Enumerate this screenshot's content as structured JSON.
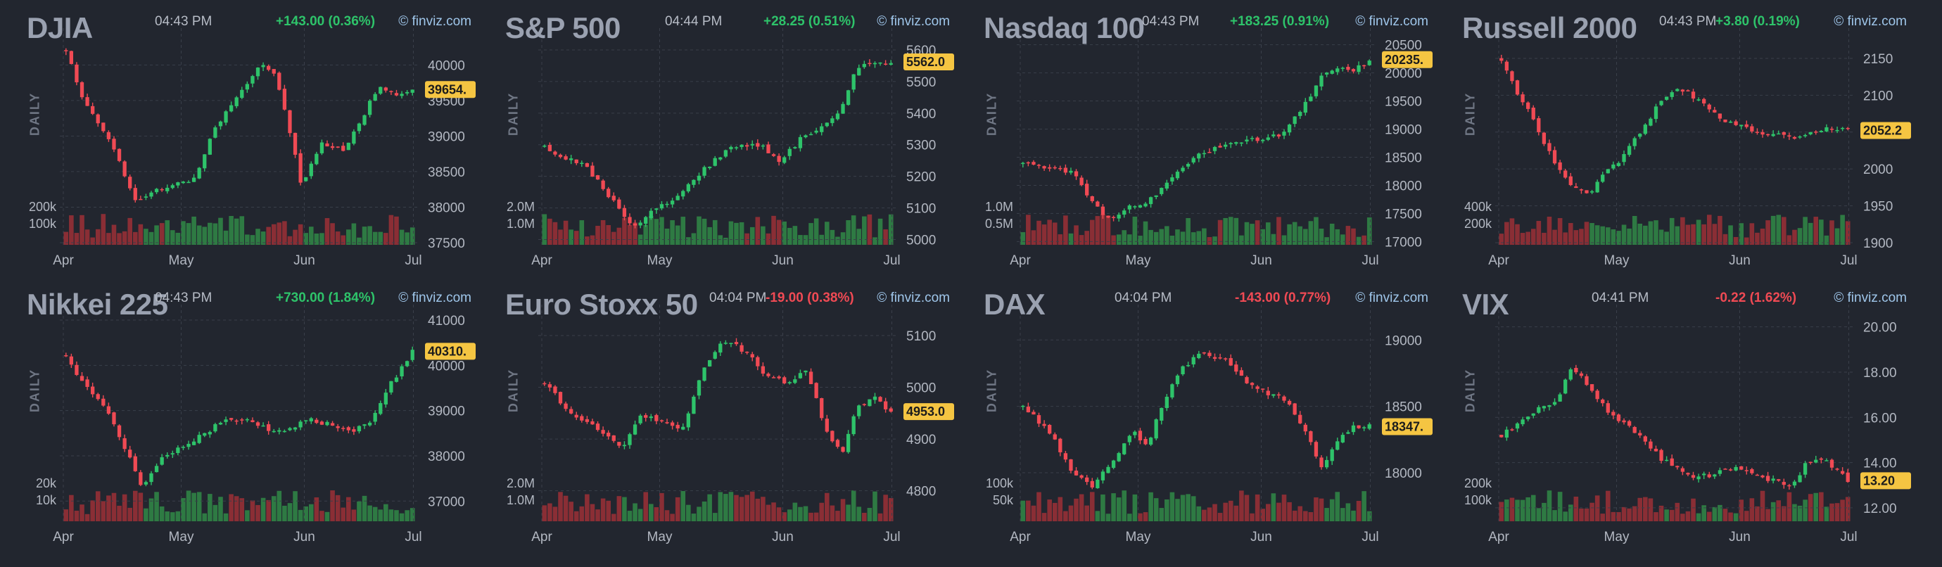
{
  "x_ticks": [
    "Apr",
    "May",
    "Jun",
    "Jul"
  ],
  "credit": "© finviz.com",
  "period_label": "DAILY",
  "colors": {
    "up": "#2ec36a",
    "down": "#f04a54",
    "vol_up": "#2e7a43",
    "vol_down": "#8a2e35",
    "price_label_bg": "#f5c542",
    "grid": "#3a3f4a"
  },
  "chart_data": [
    {
      "type": "candlestick",
      "title": "DJIA",
      "time": "04:43 PM",
      "change": "+143.00 (0.36%)",
      "direction": "up",
      "last_price": 39654,
      "last_price_label": "39654.",
      "y_ticks": [
        "40000",
        "39500",
        "39000",
        "38500",
        "38000",
        "37500"
      ],
      "ylim": [
        37500,
        40300
      ],
      "volume_ticks": [
        "200k",
        "100k"
      ],
      "volume_max": 260000,
      "anchors": [
        [
          0,
          40200
        ],
        [
          0.05,
          39500
        ],
        [
          0.12,
          39000
        ],
        [
          0.2,
          38100
        ],
        [
          0.3,
          38300
        ],
        [
          0.37,
          38400
        ],
        [
          0.43,
          39100
        ],
        [
          0.5,
          39600
        ],
        [
          0.56,
          40000
        ],
        [
          0.6,
          39900
        ],
        [
          0.64,
          39200
        ],
        [
          0.68,
          38300
        ],
        [
          0.74,
          38900
        ],
        [
          0.8,
          38800
        ],
        [
          0.86,
          39300
        ],
        [
          0.9,
          39700
        ],
        [
          0.95,
          39600
        ],
        [
          1,
          39654
        ]
      ]
    },
    {
      "type": "candlestick",
      "title": "S&P 500",
      "time": "04:44 PM",
      "change": "+28.25 (0.51%)",
      "direction": "up",
      "last_price": 5562,
      "last_price_label": "5562.0",
      "y_ticks": [
        "5600",
        "5500",
        "5400",
        "5300",
        "5200",
        "5100",
        "5000"
      ],
      "ylim": [
        4990,
        5620
      ],
      "volume_ticks": [
        "2.0M",
        "1.0M"
      ],
      "volume_max": 2600000,
      "anchors": [
        [
          0,
          5290
        ],
        [
          0.06,
          5260
        ],
        [
          0.12,
          5230
        ],
        [
          0.2,
          5120
        ],
        [
          0.26,
          5040
        ],
        [
          0.32,
          5100
        ],
        [
          0.37,
          5120
        ],
        [
          0.42,
          5180
        ],
        [
          0.5,
          5260
        ],
        [
          0.56,
          5300
        ],
        [
          0.62,
          5300
        ],
        [
          0.68,
          5250
        ],
        [
          0.74,
          5320
        ],
        [
          0.8,
          5360
        ],
        [
          0.86,
          5420
        ],
        [
          0.9,
          5540
        ],
        [
          0.95,
          5560
        ],
        [
          1,
          5562
        ]
      ]
    },
    {
      "type": "candlestick",
      "title": "Nasdaq 100",
      "time": "04:43 PM",
      "change": "+183.25 (0.91%)",
      "direction": "up",
      "last_price": 20235,
      "last_price_label": "20235.",
      "y_ticks": [
        "20500",
        "20000",
        "19500",
        "19000",
        "18500",
        "18000",
        "17500",
        "17000"
      ],
      "ylim": [
        16980,
        20520
      ],
      "volume_ticks": [
        "1.0M",
        "0.5M"
      ],
      "volume_max": 1400000,
      "anchors": [
        [
          0,
          18400
        ],
        [
          0.08,
          18300
        ],
        [
          0.15,
          18200
        ],
        [
          0.2,
          17700
        ],
        [
          0.25,
          17400
        ],
        [
          0.3,
          17600
        ],
        [
          0.36,
          17700
        ],
        [
          0.42,
          18100
        ],
        [
          0.5,
          18500
        ],
        [
          0.56,
          18700
        ],
        [
          0.62,
          18800
        ],
        [
          0.68,
          18800
        ],
        [
          0.74,
          18900
        ],
        [
          0.8,
          19300
        ],
        [
          0.86,
          19900
        ],
        [
          0.9,
          20100
        ],
        [
          0.95,
          20000
        ],
        [
          1,
          20235
        ]
      ]
    },
    {
      "type": "candlestick",
      "title": "Russell 2000",
      "time": "04:43 PM",
      "change": "+3.80 (0.19%)",
      "direction": "up",
      "last_price": 2052.2,
      "last_price_label": "2052.2",
      "y_ticks": [
        "2150",
        "2100",
        "2050",
        "2000",
        "1950",
        "1900"
      ],
      "ylim": [
        1900,
        2170
      ],
      "volume_ticks": [
        "400k",
        "200k"
      ],
      "volume_max": 560000,
      "anchors": [
        [
          0,
          2150
        ],
        [
          0.05,
          2100
        ],
        [
          0.1,
          2060
        ],
        [
          0.15,
          2010
        ],
        [
          0.2,
          1975
        ],
        [
          0.25,
          1965
        ],
        [
          0.3,
          1995
        ],
        [
          0.35,
          2015
        ],
        [
          0.4,
          2050
        ],
        [
          0.45,
          2085
        ],
        [
          0.5,
          2110
        ],
        [
          0.55,
          2100
        ],
        [
          0.6,
          2080
        ],
        [
          0.65,
          2065
        ],
        [
          0.7,
          2055
        ],
        [
          0.75,
          2050
        ],
        [
          0.8,
          2045
        ],
        [
          0.85,
          2040
        ],
        [
          0.9,
          2050
        ],
        [
          0.95,
          2055
        ],
        [
          1,
          2052
        ]
      ]
    },
    {
      "type": "candlestick",
      "title": "Nikkei 225",
      "time": "04:43 PM",
      "change": "+730.00 (1.84%)",
      "direction": "up",
      "last_price": 40310,
      "last_price_label": "40310.",
      "y_ticks": [
        "41000",
        "40000",
        "39000",
        "38000",
        "37000"
      ],
      "ylim": [
        36600,
        41000
      ],
      "volume_ticks": [
        "20k",
        "10k"
      ],
      "volume_max": 28000,
      "anchors": [
        [
          0,
          40200
        ],
        [
          0.06,
          39500
        ],
        [
          0.12,
          39000
        ],
        [
          0.18,
          38000
        ],
        [
          0.22,
          37300
        ],
        [
          0.28,
          38000
        ],
        [
          0.34,
          38200
        ],
        [
          0.4,
          38500
        ],
        [
          0.46,
          38800
        ],
        [
          0.52,
          38800
        ],
        [
          0.58,
          38600
        ],
        [
          0.64,
          38600
        ],
        [
          0.7,
          38800
        ],
        [
          0.76,
          38700
        ],
        [
          0.82,
          38500
        ],
        [
          0.88,
          38800
        ],
        [
          0.93,
          39500
        ],
        [
          1,
          40310
        ]
      ]
    },
    {
      "type": "candlestick",
      "title": "Euro Stoxx 50",
      "time": "04:04 PM",
      "change": "-19.00 (0.38%)",
      "direction": "down",
      "last_price": 4953,
      "last_price_label": "4953.0",
      "y_ticks": [
        "5100",
        "5000",
        "4900",
        "4800"
      ],
      "ylim": [
        4745,
        5130
      ],
      "volume_ticks": [
        "2.0M",
        "1.0M"
      ],
      "volume_max": 2600000,
      "anchors": [
        [
          0,
          5010
        ],
        [
          0.06,
          4960
        ],
        [
          0.12,
          4930
        ],
        [
          0.18,
          4910
        ],
        [
          0.22,
          4880
        ],
        [
          0.28,
          4950
        ],
        [
          0.34,
          4930
        ],
        [
          0.4,
          4920
        ],
        [
          0.46,
          5040
        ],
        [
          0.52,
          5090
        ],
        [
          0.58,
          5070
        ],
        [
          0.64,
          5020
        ],
        [
          0.7,
          5010
        ],
        [
          0.76,
          5030
        ],
        [
          0.82,
          4900
        ],
        [
          0.86,
          4870
        ],
        [
          0.9,
          4960
        ],
        [
          0.95,
          4980
        ],
        [
          1,
          4953
        ]
      ]
    },
    {
      "type": "candlestick",
      "title": "DAX",
      "time": "04:04 PM",
      "change": "-143.00 (0.77%)",
      "direction": "down",
      "last_price": 18347,
      "last_price_label": "18347.",
      "y_ticks": [
        "19000",
        "18500",
        "18000"
      ],
      "ylim": [
        17650,
        19150
      ],
      "volume_ticks": [
        "100k",
        "50k"
      ],
      "volume_max": 135000,
      "anchors": [
        [
          0,
          18500
        ],
        [
          0.08,
          18300
        ],
        [
          0.14,
          18000
        ],
        [
          0.2,
          17900
        ],
        [
          0.26,
          18100
        ],
        [
          0.32,
          18300
        ],
        [
          0.36,
          18200
        ],
        [
          0.4,
          18500
        ],
        [
          0.46,
          18800
        ],
        [
          0.52,
          18900
        ],
        [
          0.58,
          18850
        ],
        [
          0.64,
          18700
        ],
        [
          0.7,
          18600
        ],
        [
          0.76,
          18550
        ],
        [
          0.82,
          18300
        ],
        [
          0.86,
          18050
        ],
        [
          0.9,
          18200
        ],
        [
          0.95,
          18350
        ],
        [
          1,
          18347
        ]
      ]
    },
    {
      "type": "candlestick",
      "title": "VIX",
      "time": "04:41 PM",
      "change": "-0.22 (1.62%)",
      "direction": "down",
      "last_price": 13.2,
      "last_price_label": "13.20",
      "y_ticks": [
        "20.00",
        "18.00",
        "16.00",
        "14.00",
        "12.00"
      ],
      "ylim": [
        11.5,
        20.3
      ],
      "volume_ticks": [
        "200k",
        "100k"
      ],
      "volume_max": 280000,
      "anchors": [
        [
          0,
          15.2
        ],
        [
          0.06,
          15.8
        ],
        [
          0.12,
          16.5
        ],
        [
          0.16,
          16.8
        ],
        [
          0.2,
          18.2
        ],
        [
          0.24,
          17.6
        ],
        [
          0.3,
          16.4
        ],
        [
          0.38,
          15.4
        ],
        [
          0.46,
          14.2
        ],
        [
          0.54,
          13.4
        ],
        [
          0.6,
          13.4
        ],
        [
          0.66,
          13.8
        ],
        [
          0.72,
          13.6
        ],
        [
          0.78,
          13.2
        ],
        [
          0.84,
          13.0
        ],
        [
          0.88,
          14.0
        ],
        [
          0.92,
          14.2
        ],
        [
          0.96,
          13.8
        ],
        [
          1,
          13.2
        ]
      ]
    }
  ]
}
